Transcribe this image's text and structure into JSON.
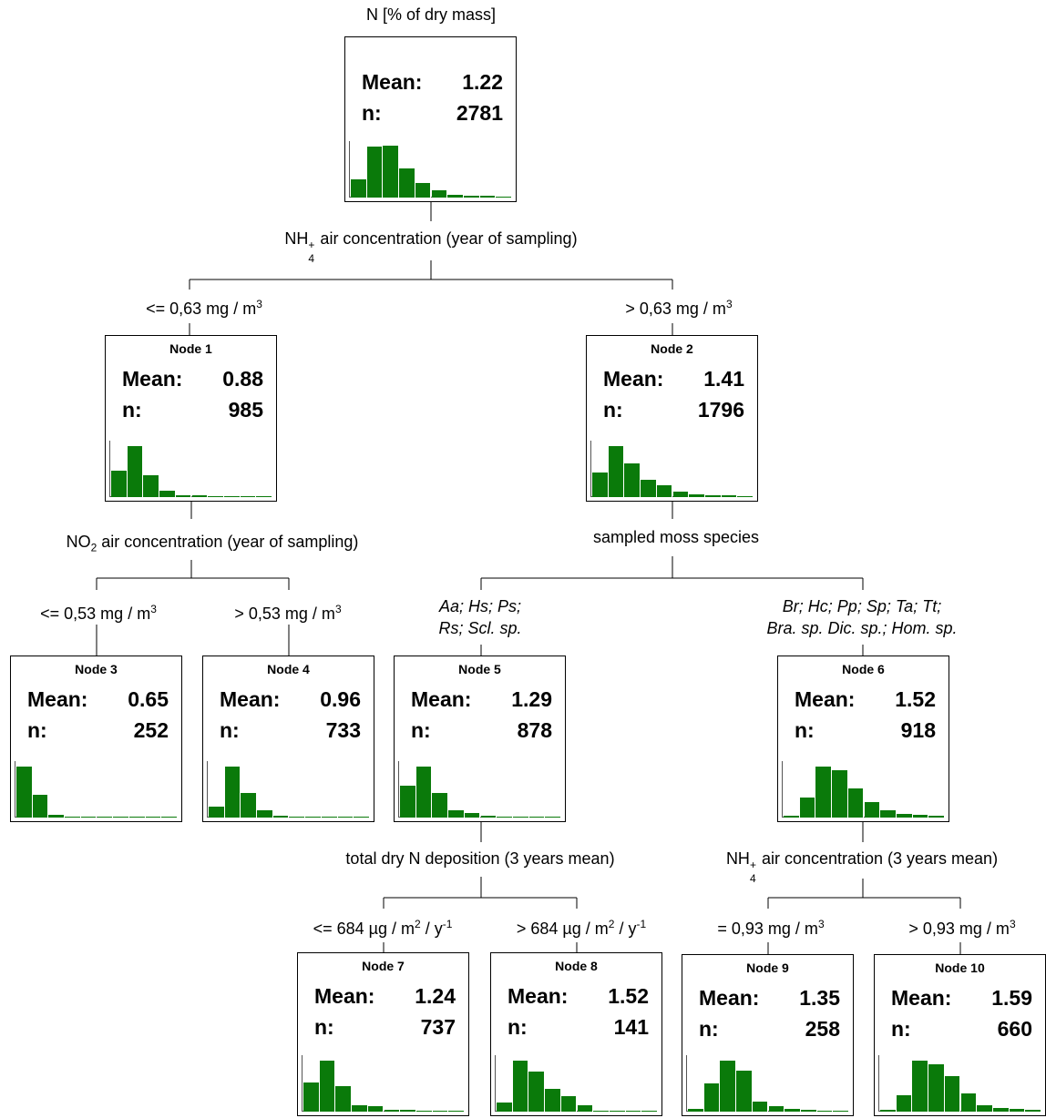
{
  "root_header": "N [% of dry mass]",
  "labels": {
    "mean": "Mean:",
    "n": "n:"
  },
  "nodes": [
    {
      "id": "root",
      "title": "",
      "mean": "1.22",
      "n": "2781",
      "hist": [
        0.35,
        1.0,
        1.02,
        0.58,
        0.28,
        0.14,
        0.05,
        0.03,
        0.03,
        0.02
      ]
    },
    {
      "id": "node1",
      "title": "Node 1",
      "mean": "0.88",
      "n": "985",
      "hist": [
        0.52,
        1.0,
        0.42,
        0.12,
        0.03,
        0.03,
        0.01,
        0.01,
        0.01,
        0.01
      ]
    },
    {
      "id": "node2",
      "title": "Node 2",
      "mean": "1.41",
      "n": "1796",
      "hist": [
        0.48,
        1.0,
        0.66,
        0.34,
        0.24,
        0.1,
        0.06,
        0.04,
        0.03,
        0.02
      ]
    },
    {
      "id": "node3",
      "title": "Node 3",
      "mean": "0.65",
      "n": "252",
      "hist": [
        1.0,
        0.44,
        0.05,
        0.01,
        0.01,
        0.01,
        0.01,
        0.01,
        0.01,
        0.01
      ]
    },
    {
      "id": "node4",
      "title": "Node 4",
      "mean": "0.96",
      "n": "733",
      "hist": [
        0.22,
        1.0,
        0.48,
        0.14,
        0.03,
        0.02,
        0.01,
        0.01,
        0.01,
        0.01
      ]
    },
    {
      "id": "node5",
      "title": "Node 5",
      "mean": "1.29",
      "n": "878",
      "hist": [
        0.62,
        1.0,
        0.48,
        0.15,
        0.09,
        0.03,
        0.02,
        0.02,
        0.01,
        0.01
      ]
    },
    {
      "id": "node6",
      "title": "Node 6",
      "mean": "1.52",
      "n": "918",
      "hist": [
        0.04,
        0.4,
        1.0,
        0.92,
        0.58,
        0.3,
        0.14,
        0.07,
        0.05,
        0.04
      ]
    },
    {
      "id": "node7",
      "title": "Node 7",
      "mean": "1.24",
      "n": "737",
      "hist": [
        0.58,
        1.0,
        0.5,
        0.13,
        0.1,
        0.04,
        0.03,
        0.02,
        0.01,
        0.01
      ]
    },
    {
      "id": "node8",
      "title": "Node 8",
      "mean": "1.52",
      "n": "141",
      "hist": [
        0.18,
        1.0,
        0.78,
        0.45,
        0.3,
        0.12,
        0.01,
        0.01,
        0.01,
        0.01
      ]
    },
    {
      "id": "node9",
      "title": "Node 9",
      "mean": "1.35",
      "n": "258",
      "hist": [
        0.05,
        0.55,
        1.0,
        0.8,
        0.2,
        0.1,
        0.06,
        0.03,
        0.02,
        0.01
      ]
    },
    {
      "id": "node10",
      "title": "Node 10",
      "mean": "1.59",
      "n": "660",
      "hist": [
        0.03,
        0.33,
        1.0,
        0.93,
        0.7,
        0.35,
        0.12,
        0.08,
        0.05,
        0.03
      ]
    }
  ],
  "splits": {
    "s0": {
      "var_pre": "NH",
      "var_sub": "4",
      "var_sup": "+",
      "var_post": " air concentration (year of sampling)"
    },
    "s1": {
      "var_pre": "NO",
      "var_sub": "2",
      "var_post": " air concentration (year of sampling)"
    },
    "s2": {
      "var": "sampled moss species"
    },
    "s5": {
      "var": "total dry N deposition (3 years mean)"
    },
    "s6": {
      "var_pre": "NH",
      "var_sub": "4",
      "var_sup": "+",
      "var_post": " air concentration (3 years mean)"
    }
  },
  "edges": {
    "e0L": {
      "pre": "<= 0,63 mg / m",
      "sup": "3"
    },
    "e0R": {
      "pre": "> 0,63 mg / m",
      "sup": "3"
    },
    "e1L": {
      "pre": "<= 0,53 mg / m",
      "sup": "3"
    },
    "e1R": {
      "pre": "> 0,53 mg / m",
      "sup": "3"
    },
    "e2L": {
      "line1": "Aa; Hs; Ps;",
      "line2": "Rs; Scl. sp."
    },
    "e2R": {
      "line1": "Br; Hc; Pp; Sp; Ta; Tt;",
      "line2": "Bra. sp. Dic. sp.; Hom. sp."
    },
    "e5L": {
      "pre": "<= 684 µg / m",
      "sup": "2",
      "mid": " / y",
      "sup2": "-1"
    },
    "e5R": {
      "pre": "> 684 µg / m",
      "sup": "2",
      "mid": " / y",
      "sup2": "-1"
    },
    "e6L": {
      "pre": "= 0,93 mg / m",
      "sup": "3"
    },
    "e6R": {
      "pre": "> 0,93 mg / m",
      "sup": "3"
    }
  }
}
